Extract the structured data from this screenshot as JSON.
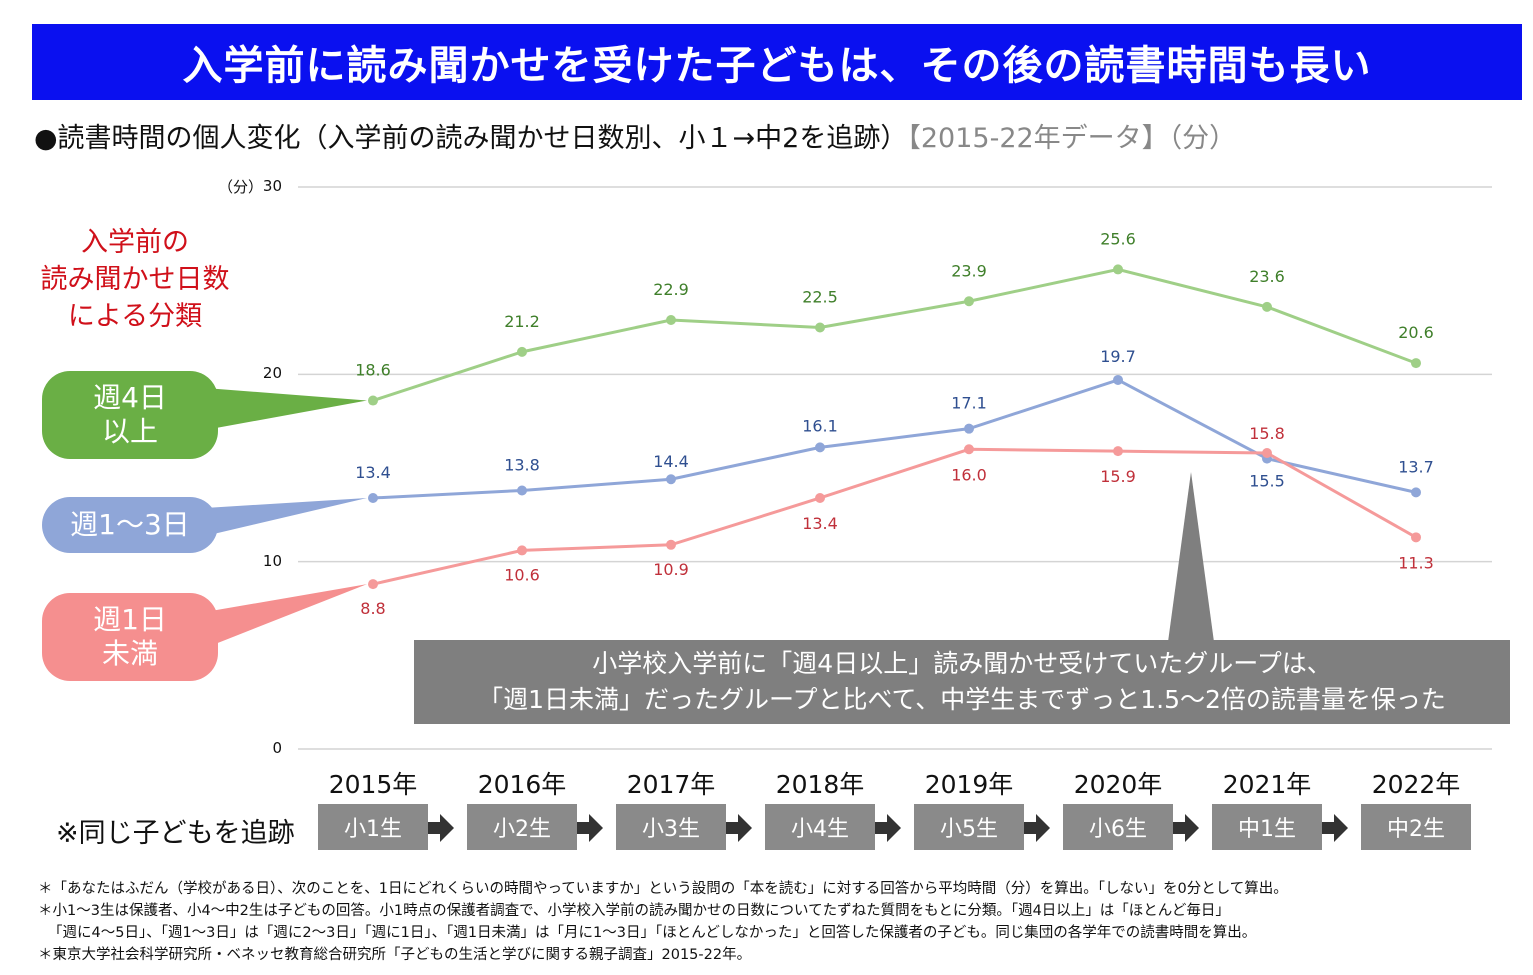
{
  "banner_title": "入学前に読み聞かせを受けた子どもは、その後の読書時間も長い",
  "subtitle_main": "●読書時間の個人変化（入学前の読み聞かせ日数別、小１→中2を追跡）",
  "subtitle_data": "【2015-22年データ】",
  "subtitle_unit": "（分）",
  "classification_label": [
    "入学前の",
    "読み聞かせ日数",
    "による分類"
  ],
  "legend": {
    "green": [
      "週4日",
      "以上"
    ],
    "blue": [
      "週1～3日"
    ],
    "red": [
      "週1日",
      "未満"
    ]
  },
  "callout": [
    "小学校入学前に「週4日以上」読み聞かせ受けていたグループは、",
    "「週1日未満」だったグループと比べて、中学生までずっと1.5～2倍の読書量を保った"
  ],
  "tracking_label": "※同じ子どもを追跡",
  "grades": [
    "小1生",
    "小2生",
    "小3生",
    "小4生",
    "小5生",
    "小6生",
    "中1生",
    "中2生"
  ],
  "footnotes": [
    "＊「あなたはふだん（学校がある日）、次のことを、1日にどれくらいの時間やっていますか」という設問の「本を読む」に対する回答から平均時間（分）を算出。「しない」を0分として算出。",
    "＊小1～3生は保護者、小4～中2生は子どもの回答。小1時点の保護者調査で、小学校入学前の読み聞かせの日数についてたずねた質問をもとに分類。「週4日以上」は「ほとんど毎日」",
    "「週に4～5日」、「週1～3日」は「週に2～3日」「週に1日」、「週1日未満」は「月に1～3日」「ほとんどしなかった」と回答した保護者の子ども。同じ集団の各学年での読書時間を算出。",
    "＊東京大学社会科学研究所・ベネッセ教育総合研究所「子どもの生活と学びに関する親子調査」2015-22年。"
  ],
  "chart_data": {
    "type": "line",
    "title": "読書時間の個人変化（入学前の読み聞かせ日数別、小１→中2を追跡）",
    "ylabel": "（分）",
    "ylim": [
      0,
      30
    ],
    "yticks": [
      0,
      10,
      20,
      30
    ],
    "x": [
      "2015年",
      "2016年",
      "2017年",
      "2018年",
      "2019年",
      "2020年",
      "2021年",
      "2022年"
    ],
    "series": [
      {
        "name": "週4日以上",
        "color": "#9fcf87",
        "values": [
          18.6,
          21.2,
          22.9,
          22.5,
          23.9,
          25.6,
          23.6,
          20.6
        ]
      },
      {
        "name": "週1～3日",
        "color": "#8fa6d8",
        "values": [
          13.4,
          13.8,
          14.4,
          16.1,
          17.1,
          19.7,
          15.5,
          13.7
        ]
      },
      {
        "name": "週1日未満",
        "color": "#f59a9a",
        "values": [
          8.8,
          10.6,
          10.9,
          13.4,
          16.0,
          15.9,
          15.8,
          11.3
        ]
      }
    ],
    "grid": true,
    "label_colors": {
      "green": "#3f7f2a",
      "blue": "#2f4f90",
      "red": "#c0303a"
    }
  }
}
